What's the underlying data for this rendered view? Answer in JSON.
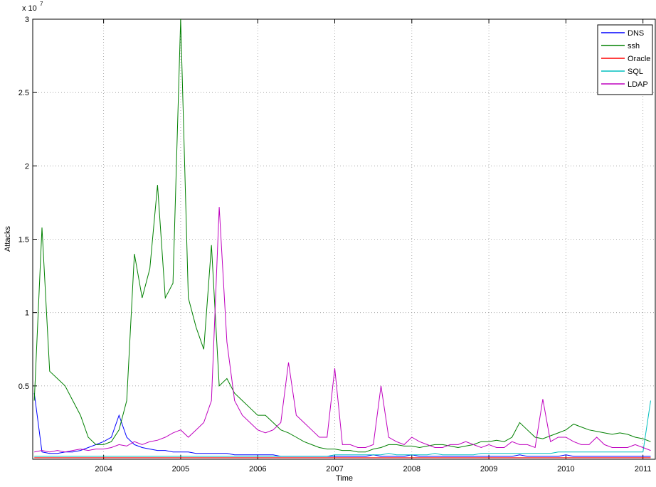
{
  "chart_data": {
    "type": "line",
    "x_label": "Time",
    "y_label": "Attacks",
    "y_exponent_base": "x 10",
    "y_exponent": "7",
    "xlim": [
      2003.08,
      2011.16
    ],
    "ylim": [
      0,
      3
    ],
    "xticks": [
      2004,
      2005,
      2006,
      2007,
      2008,
      2009,
      2010,
      2011
    ],
    "yticks": [
      0.5,
      1,
      1.5,
      2,
      2.5,
      3
    ],
    "grid": true,
    "legend": "northeast",
    "x": [
      2003.1,
      2003.2,
      2003.3,
      2003.4,
      2003.5,
      2003.6,
      2003.7,
      2003.8,
      2003.9,
      2004.0,
      2004.1,
      2004.2,
      2004.3,
      2004.4,
      2004.5,
      2004.6,
      2004.7,
      2004.8,
      2004.9,
      2005.0,
      2005.1,
      2005.2,
      2005.3,
      2005.4,
      2005.5,
      2005.6,
      2005.7,
      2005.8,
      2005.9,
      2006.0,
      2006.1,
      2006.2,
      2006.3,
      2006.4,
      2006.5,
      2006.6,
      2006.7,
      2006.8,
      2006.9,
      2007.0,
      2007.1,
      2007.2,
      2007.3,
      2007.4,
      2007.5,
      2007.6,
      2007.7,
      2007.8,
      2007.9,
      2008.0,
      2008.1,
      2008.2,
      2008.3,
      2008.4,
      2008.5,
      2008.6,
      2008.7,
      2008.8,
      2008.9,
      2009.0,
      2009.1,
      2009.2,
      2009.3,
      2009.4,
      2009.5,
      2009.6,
      2009.7,
      2009.8,
      2009.9,
      2010.0,
      2010.1,
      2010.2,
      2010.3,
      2010.4,
      2010.5,
      2010.6,
      2010.7,
      2010.8,
      2010.9,
      2011.0,
      2011.1
    ],
    "series": [
      {
        "name": "DNS",
        "color": "#0000ff",
        "values": [
          0.45,
          0.05,
          0.04,
          0.04,
          0.05,
          0.05,
          0.06,
          0.08,
          0.1,
          0.12,
          0.15,
          0.3,
          0.15,
          0.1,
          0.08,
          0.07,
          0.06,
          0.06,
          0.05,
          0.05,
          0.05,
          0.04,
          0.04,
          0.04,
          0.04,
          0.04,
          0.03,
          0.03,
          0.03,
          0.03,
          0.03,
          0.03,
          0.02,
          0.02,
          0.02,
          0.02,
          0.02,
          0.02,
          0.02,
          0.02,
          0.02,
          0.02,
          0.02,
          0.02,
          0.03,
          0.02,
          0.02,
          0.02,
          0.02,
          0.03,
          0.02,
          0.02,
          0.02,
          0.02,
          0.02,
          0.02,
          0.02,
          0.02,
          0.02,
          0.02,
          0.02,
          0.02,
          0.02,
          0.03,
          0.02,
          0.02,
          0.02,
          0.02,
          0.02,
          0.03,
          0.02,
          0.02,
          0.02,
          0.02,
          0.02,
          0.02,
          0.02,
          0.02,
          0.02,
          0.02,
          0.02
        ]
      },
      {
        "name": "ssh",
        "color": "#008000",
        "values": [
          0.4,
          1.58,
          0.6,
          0.55,
          0.5,
          0.4,
          0.3,
          0.15,
          0.1,
          0.1,
          0.12,
          0.2,
          0.4,
          1.4,
          1.1,
          1.3,
          1.87,
          1.1,
          1.2,
          3.0,
          1.1,
          0.9,
          0.75,
          1.46,
          0.5,
          0.55,
          0.45,
          0.4,
          0.35,
          0.3,
          0.3,
          0.25,
          0.2,
          0.18,
          0.15,
          0.12,
          0.1,
          0.08,
          0.07,
          0.07,
          0.06,
          0.06,
          0.05,
          0.05,
          0.07,
          0.08,
          0.1,
          0.1,
          0.09,
          0.09,
          0.08,
          0.09,
          0.1,
          0.1,
          0.09,
          0.08,
          0.09,
          0.1,
          0.12,
          0.12,
          0.13,
          0.12,
          0.15,
          0.25,
          0.2,
          0.15,
          0.14,
          0.16,
          0.18,
          0.2,
          0.24,
          0.22,
          0.2,
          0.19,
          0.18,
          0.17,
          0.18,
          0.17,
          0.15,
          0.14,
          0.12
        ]
      },
      {
        "name": "Oracle",
        "color": "#ff0000",
        "values": [
          0.01,
          0.01,
          0.01,
          0.01,
          0.01,
          0.01,
          0.01,
          0.01,
          0.01,
          0.01,
          0.01,
          0.01,
          0.01,
          0.01,
          0.01,
          0.01,
          0.01,
          0.01,
          0.01,
          0.01,
          0.01,
          0.01,
          0.01,
          0.01,
          0.01,
          0.01,
          0.01,
          0.01,
          0.01,
          0.01,
          0.01,
          0.01,
          0.01,
          0.01,
          0.01,
          0.01,
          0.01,
          0.01,
          0.01,
          0.01,
          0.01,
          0.01,
          0.01,
          0.01,
          0.01,
          0.01,
          0.01,
          0.01,
          0.01,
          0.01,
          0.01,
          0.01,
          0.01,
          0.01,
          0.01,
          0.01,
          0.01,
          0.01,
          0.01,
          0.01,
          0.01,
          0.01,
          0.01,
          0.01,
          0.01,
          0.01,
          0.01,
          0.01,
          0.01,
          0.01,
          0.01,
          0.01,
          0.01,
          0.01,
          0.01,
          0.01,
          0.01,
          0.01,
          0.01,
          0.01,
          0.01
        ]
      },
      {
        "name": "SQL",
        "color": "#00bfbf",
        "values": [
          0.02,
          0.02,
          0.02,
          0.02,
          0.02,
          0.02,
          0.02,
          0.02,
          0.02,
          0.02,
          0.02,
          0.02,
          0.02,
          0.02,
          0.02,
          0.02,
          0.02,
          0.02,
          0.02,
          0.02,
          0.02,
          0.02,
          0.02,
          0.02,
          0.02,
          0.02,
          0.02,
          0.02,
          0.02,
          0.02,
          0.02,
          0.02,
          0.02,
          0.02,
          0.02,
          0.02,
          0.02,
          0.02,
          0.02,
          0.03,
          0.03,
          0.03,
          0.03,
          0.03,
          0.03,
          0.03,
          0.04,
          0.03,
          0.03,
          0.03,
          0.03,
          0.03,
          0.04,
          0.03,
          0.03,
          0.03,
          0.03,
          0.03,
          0.04,
          0.04,
          0.04,
          0.04,
          0.04,
          0.04,
          0.04,
          0.04,
          0.04,
          0.04,
          0.05,
          0.05,
          0.05,
          0.05,
          0.05,
          0.05,
          0.05,
          0.05,
          0.05,
          0.05,
          0.05,
          0.05,
          0.4
        ]
      },
      {
        "name": "LDAP",
        "color": "#bf00bf",
        "values": [
          0.05,
          0.06,
          0.05,
          0.06,
          0.05,
          0.06,
          0.07,
          0.06,
          0.07,
          0.07,
          0.08,
          0.1,
          0.09,
          0.12,
          0.1,
          0.12,
          0.13,
          0.15,
          0.18,
          0.2,
          0.15,
          0.2,
          0.25,
          0.4,
          1.72,
          0.8,
          0.4,
          0.3,
          0.25,
          0.2,
          0.18,
          0.2,
          0.25,
          0.66,
          0.3,
          0.25,
          0.2,
          0.15,
          0.15,
          0.62,
          0.1,
          0.1,
          0.08,
          0.08,
          0.1,
          0.5,
          0.15,
          0.12,
          0.1,
          0.15,
          0.12,
          0.1,
          0.08,
          0.08,
          0.1,
          0.1,
          0.12,
          0.1,
          0.08,
          0.1,
          0.08,
          0.08,
          0.12,
          0.1,
          0.1,
          0.08,
          0.41,
          0.12,
          0.15,
          0.15,
          0.12,
          0.1,
          0.1,
          0.15,
          0.1,
          0.08,
          0.08,
          0.08,
          0.1,
          0.08,
          0.06
        ]
      }
    ]
  }
}
